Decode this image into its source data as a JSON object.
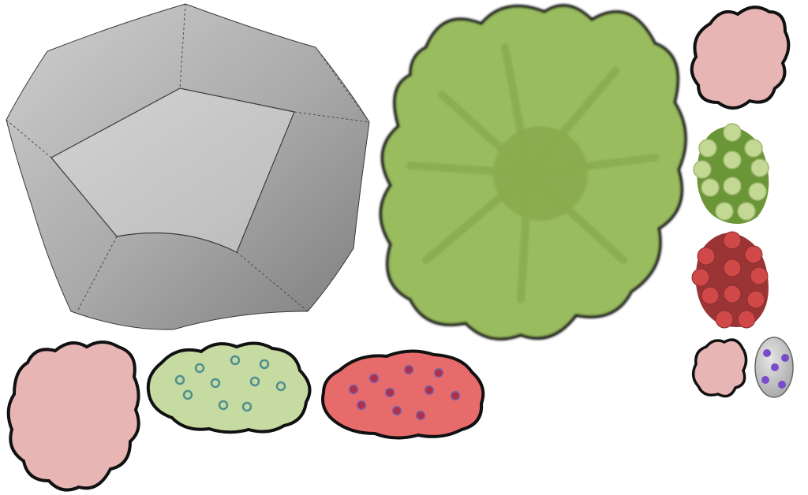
{
  "sheet": {
    "background": "#ffffff",
    "outline_color": "#111111"
  },
  "sprites": [
    {
      "name": "stone-planter-sprite",
      "kind": "stone",
      "colors": {
        "light": "#cfcfcf",
        "mid": "#a9a9a9",
        "dark": "#7d7d7d",
        "inner": "#c8c8c8"
      }
    },
    {
      "name": "large-green-tree-sprite",
      "kind": "tree",
      "colors": {
        "fill": "#99bc5e",
        "vein": "#88aa50",
        "center": "#8bab4e",
        "stroke": "#1d1d1d"
      }
    },
    {
      "name": "pink-shrub-small-sprite",
      "kind": "shrub",
      "colors": {
        "fill": "#e8b5b5"
      }
    },
    {
      "name": "green-berry-bush-sprite",
      "kind": "berry-bush",
      "colors": {
        "fill": "#6b9637",
        "dot": "#c2d893",
        "dot_stroke": "#9fb870"
      }
    },
    {
      "name": "red-berry-bush-sprite",
      "kind": "berry-bush",
      "colors": {
        "fill": "#9a3435",
        "dot": "#d04848",
        "dot_stroke": "#8a2e2e"
      }
    },
    {
      "name": "pink-shrub-tiny-sprite",
      "kind": "shrub",
      "colors": {
        "fill": "#e8b5b5"
      }
    },
    {
      "name": "purple-spotted-egg-sprite",
      "kind": "egg",
      "colors": {
        "fill": "#c7c7c7",
        "spot": "#7a4ccc"
      }
    },
    {
      "name": "pink-shrub-large-sprite",
      "kind": "shrub",
      "colors": {
        "fill": "#e8b5b5"
      }
    },
    {
      "name": "light-green-hedge-sprite",
      "kind": "hedge",
      "colors": {
        "fill": "#c6dba1",
        "ring": "#4f8f8f"
      }
    },
    {
      "name": "red-flower-hedge-sprite",
      "kind": "hedge",
      "colors": {
        "fill": "#e86b6b",
        "dot": "#b0304a",
        "dot_stroke": "#7a67b0"
      }
    }
  ]
}
